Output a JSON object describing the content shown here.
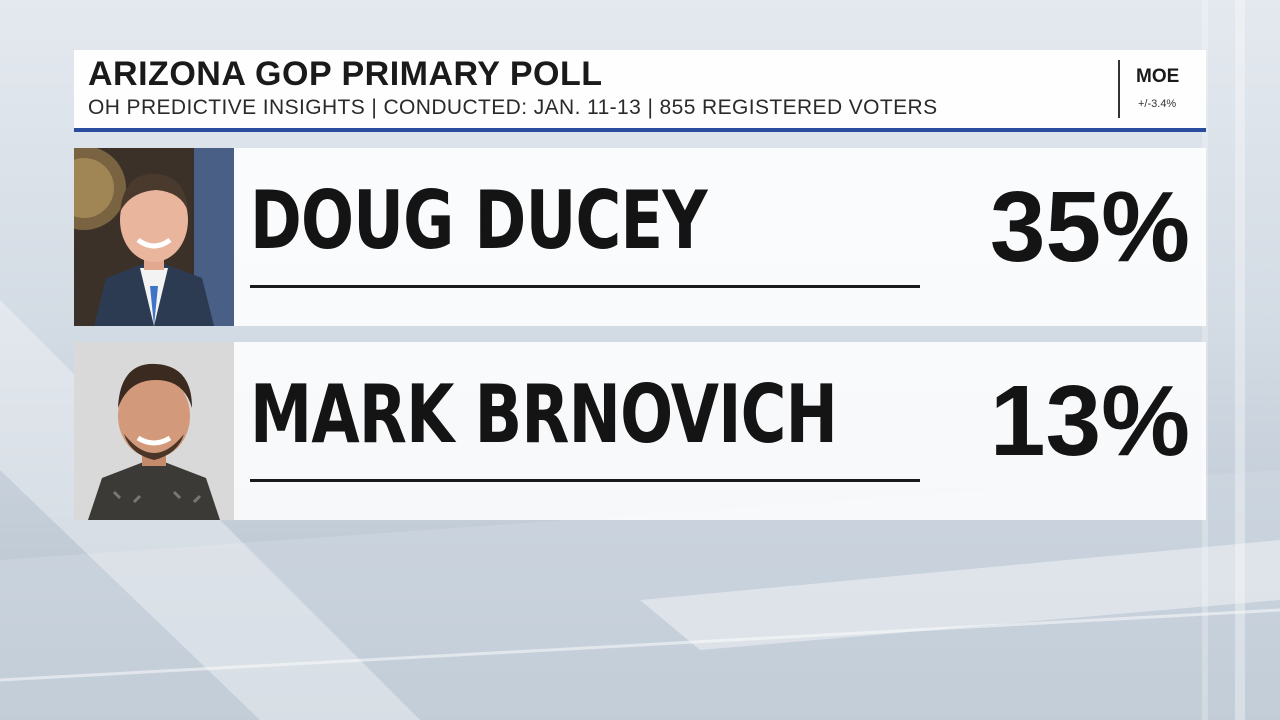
{
  "header": {
    "title": "ARIZONA GOP PRIMARY POLL",
    "subtitle": "OH PREDICTIVE INSIGHTS | CONDUCTED: JAN. 11-13 | 855 REGISTERED VOTERS",
    "moe_label": "MOE",
    "moe_value": "+/-3.4%"
  },
  "candidates": [
    {
      "name": "DOUG DUCEY",
      "percent": "35%"
    },
    {
      "name": "MARK BRNOVICH",
      "percent": "13%"
    }
  ],
  "colors": {
    "accent_rule": "#2a4c9c",
    "text": "#141414"
  }
}
